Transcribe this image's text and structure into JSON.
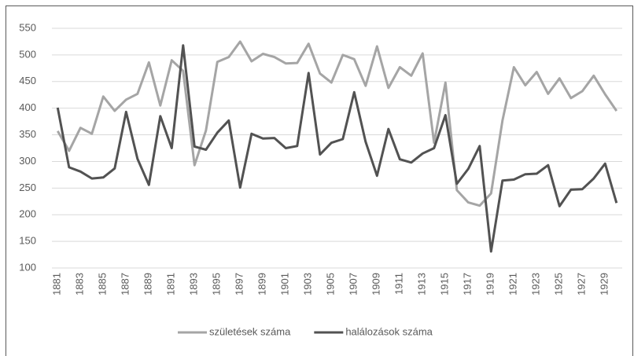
{
  "chart_data": {
    "type": "line",
    "categories": [
      "1881",
      null,
      "1883",
      null,
      "1885",
      null,
      "1887",
      null,
      "1889",
      null,
      "1891",
      null,
      "1893",
      null,
      "1895",
      null,
      "1897",
      null,
      "1899",
      null,
      "1901",
      null,
      "1903",
      null,
      "1905",
      null,
      "1907",
      null,
      "1909",
      null,
      "1911",
      null,
      "1913",
      null,
      "1915",
      null,
      "1917",
      null,
      "1919",
      null,
      "1921",
      null,
      "1923",
      null,
      "1925",
      null,
      "1927",
      null,
      "1929",
      null
    ],
    "series": [
      {
        "name": "születések száma",
        "color": "#a5a5a5",
        "values": [
          357,
          320,
          363,
          352,
          422,
          395,
          416,
          427,
          486,
          405,
          490,
          470,
          293,
          358,
          487,
          496,
          525,
          488,
          502,
          496,
          484,
          485,
          521,
          465,
          448,
          500,
          492,
          442,
          516,
          438,
          477,
          461,
          503,
          335,
          448,
          246,
          223,
          217,
          240,
          377,
          477,
          443,
          468,
          427,
          456,
          419,
          432,
          461,
          426,
          395
        ]
      },
      {
        "name": "halálozások száma",
        "color": "#525252",
        "values": [
          401,
          289,
          281,
          268,
          270,
          287,
          393,
          305,
          256,
          385,
          325,
          518,
          328,
          322,
          354,
          377,
          251,
          352,
          343,
          344,
          325,
          329,
          466,
          313,
          335,
          342,
          430,
          337,
          273,
          361,
          304,
          298,
          315,
          325,
          387,
          258,
          286,
          329,
          131,
          264,
          266,
          276,
          277,
          293,
          216,
          247,
          248,
          268,
          296,
          222
        ]
      }
    ],
    "ylim": [
      100,
      550
    ],
    "yticks": [
      100,
      150,
      200,
      250,
      300,
      350,
      400,
      450,
      500,
      550
    ],
    "grid": true,
    "legend": "bottom"
  }
}
